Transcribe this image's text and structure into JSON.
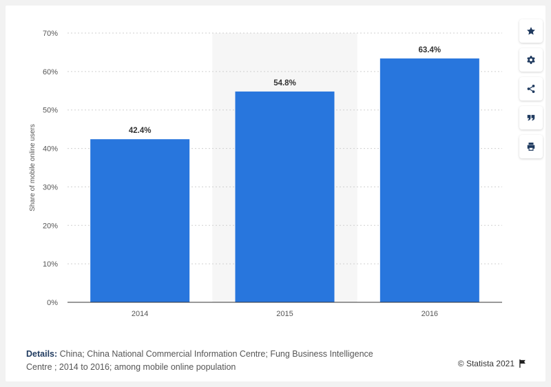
{
  "chart_data": {
    "type": "bar",
    "categories": [
      "2014",
      "2015",
      "2016"
    ],
    "values": [
      42.4,
      54.8,
      63.4
    ],
    "value_labels": [
      "42.4%",
      "54.8%",
      "63.4%"
    ],
    "ylabel": "Share of mobile online users",
    "yticks": [
      0,
      10,
      20,
      30,
      40,
      50,
      60,
      70
    ],
    "ytick_labels": [
      "0%",
      "10%",
      "20%",
      "30%",
      "40%",
      "50%",
      "60%",
      "70%"
    ],
    "ylim": [
      0,
      70
    ],
    "grid": true,
    "highlighted_category": "2015",
    "bar_color": "#2876dd"
  },
  "toolbar": {
    "items": [
      {
        "icon": "star-icon"
      },
      {
        "icon": "gear-icon"
      },
      {
        "icon": "share-icon"
      },
      {
        "icon": "quote-icon"
      },
      {
        "icon": "print-icon"
      }
    ]
  },
  "footer": {
    "details_label": "Details:",
    "details_text": "China; China National Commercial Information Centre; Fung Business Intelligence Centre ; 2014 to 2016; among mobile online population",
    "credit": "© Statista 2021"
  },
  "colors": {
    "accent": "#1f3a5f",
    "bar": "#2876dd",
    "highlight_band": "#f6f6f6"
  }
}
